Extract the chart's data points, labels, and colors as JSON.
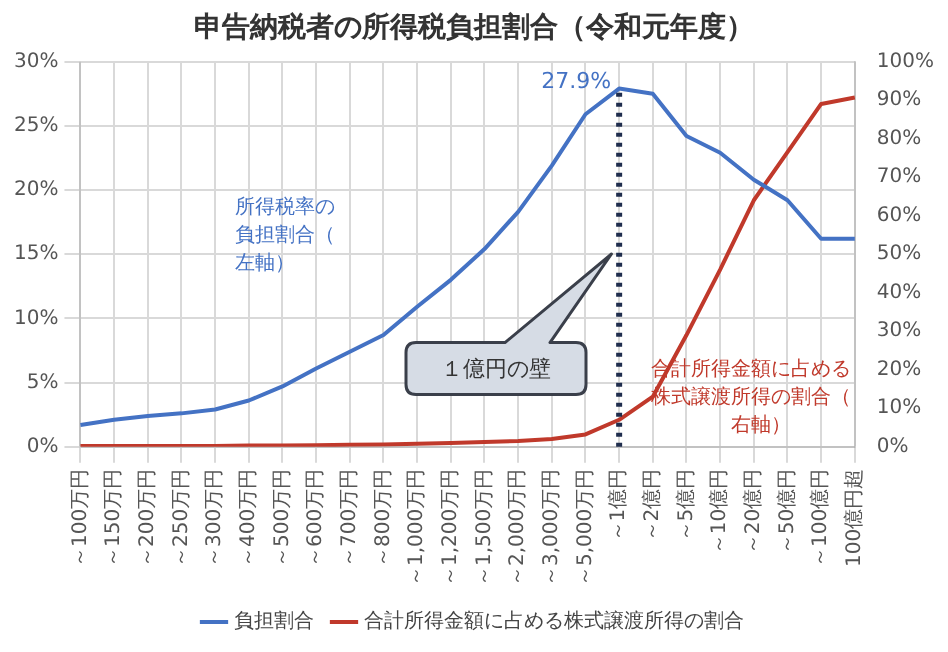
{
  "chart_data": {
    "type": "line",
    "title": "申告納税者の所得税負担割合（令和元年度）",
    "categories": [
      "～100万円",
      "～150万円",
      "～200万円",
      "～250万円",
      "～300万円",
      "～400万円",
      "～500万円",
      "～600万円",
      "～700万円",
      "～800万円",
      "～1,000万円",
      "～1,200万円",
      "～1,500万円",
      "～2,000万円",
      "～3,000万円",
      "～5,000万円",
      "～1億円",
      "～2億円",
      "～5億円",
      "～10億円",
      "～20億円",
      "～50億円",
      "～100億円",
      "100億円超"
    ],
    "series": [
      {
        "name": "負担割合",
        "color": "#4472c4",
        "values": [
          1.7,
          2.1,
          2.4,
          2.6,
          2.9,
          3.6,
          4.7,
          6.1,
          7.4,
          8.7,
          10.9,
          13.0,
          15.4,
          18.3,
          21.9,
          25.9,
          27.9,
          27.5,
          24.2,
          22.9,
          20.8,
          19.2,
          16.2,
          16.2
        ]
      },
      {
        "name": "合計所得金額に占める株式譲渡所得の割合",
        "color": "#c0392b",
        "axis": "y2",
        "values": [
          0.2,
          0.2,
          0.2,
          0.2,
          0.2,
          0.3,
          0.3,
          0.4,
          0.5,
          0.6,
          0.8,
          1,
          1.2,
          1.5,
          2,
          3.2,
          7,
          13,
          29,
          46,
          64,
          76.5,
          89,
          90.7
        ]
      }
    ],
    "ylim": [
      0,
      30
    ],
    "yticks": [
      {
        "value": 0,
        "label": "0%"
      },
      {
        "value": 5,
        "label": "5%"
      },
      {
        "value": 10,
        "label": "10%"
      },
      {
        "value": 15,
        "label": "15%"
      },
      {
        "value": 20,
        "label": "20%"
      },
      {
        "value": 25,
        "label": "25%"
      },
      {
        "value": 30,
        "label": "30%"
      }
    ],
    "y2lim": [
      0,
      100
    ],
    "y2ticks": [
      {
        "value": 0,
        "label": "0%"
      },
      {
        "value": 10,
        "label": "10%"
      },
      {
        "value": 20,
        "label": "20%"
      },
      {
        "value": 30,
        "label": "30%"
      },
      {
        "value": 40,
        "label": "40%"
      },
      {
        "value": 50,
        "label": "50%"
      },
      {
        "value": 60,
        "label": "60%"
      },
      {
        "value": 70,
        "label": "70%"
      },
      {
        "value": 80,
        "label": "80%"
      },
      {
        "value": 90,
        "label": "90%"
      },
      {
        "value": 100,
        "label": "100%"
      }
    ],
    "ref_lines": [
      {
        "axis": "x",
        "value": "～1億円",
        "label": null,
        "color": "#1f2d4d",
        "line_style": "dotted"
      }
    ],
    "annotations": [
      {
        "text": "27.9%",
        "x": "～1億円",
        "y": 27.9
      },
      "１億円の壁",
      "所得税率の負担割合（左軸）",
      "合計所得金額に占める株式譲渡所得の割合（右軸）"
    ],
    "grid": true,
    "legend": "bottom",
    "marker": "none",
    "line_style": "solid"
  }
}
